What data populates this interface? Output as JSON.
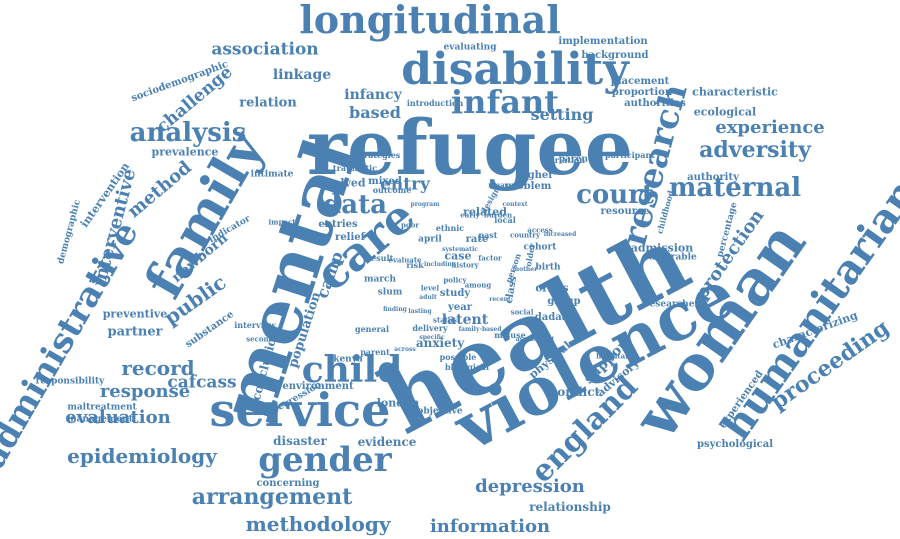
{
  "colors": {
    "word": "#4a80b2",
    "background": "#ffffff"
  },
  "words": [
    "health",
    "violence",
    "refugee",
    "mental",
    "woman",
    "humanitarian",
    "service",
    "family",
    "disability",
    "longitudinal",
    "infant",
    "care",
    "child",
    "gender",
    "administrative",
    "research",
    "england",
    "court",
    "analysis",
    "data",
    "maternal",
    "adversity",
    "experience",
    "arrangement",
    "epidemiology",
    "methodology",
    "record",
    "proceeding",
    "depression",
    "protection",
    "information",
    "public",
    "camp",
    "association",
    "entry",
    "response",
    "evaluation",
    "cafcass",
    "challenge",
    "method",
    "newborn",
    "interventive",
    "support",
    "latent",
    "anxiety",
    "based",
    "setting",
    "infancy",
    "linkage",
    "relation",
    "partner",
    "conclusion",
    "population",
    "disaster",
    "evidence",
    "relationship",
    "characterizing",
    "experienced",
    "advisory",
    "conflict",
    "physical",
    "london",
    "preventive",
    "substance",
    "responsibility",
    "maltreatment",
    "management",
    "environment",
    "regression",
    "concerning",
    "implementation",
    "background",
    "evaluating",
    "placement",
    "proportion",
    "authorities",
    "characteristic",
    "ecological",
    "authority",
    "admission",
    "vulnerable",
    "resource",
    "percentage",
    "researcher",
    "psychological",
    "sociodemographic",
    "prevalence",
    "intervention",
    "demographic",
    "indicator",
    "interview",
    "secondary",
    "intimate",
    "involved",
    "mixed",
    "outcome",
    "traumatic",
    "introduction",
    "strategies",
    "higher",
    "problem",
    "related",
    "entries",
    "relief",
    "rate",
    "case",
    "april",
    "ethnic",
    "class",
    "year",
    "study",
    "crisis",
    "group",
    "dadaab",
    "kenya",
    "slum",
    "march",
    "cohort",
    "birth",
    "parental",
    "participant",
    "variation",
    "childhood",
    "hospital",
    "parent",
    "delivery",
    "specific",
    "possible",
    "biological",
    "misuse",
    "objective",
    "general",
    "past",
    "design",
    "person",
    "older",
    "level",
    "adult",
    "local",
    "risk",
    "result",
    "evaluate",
    "policy",
    "poor",
    "among",
    "burden",
    "measure",
    "impact",
    "history",
    "factor",
    "social",
    "country",
    "early",
    "status",
    "access",
    "including",
    "recent",
    "lasting",
    "family-based",
    "mother",
    "finding",
    "program",
    "context",
    "increased",
    "across",
    "systematic",
    "assessment",
    "quality",
    "sample",
    "identified"
  ]
}
